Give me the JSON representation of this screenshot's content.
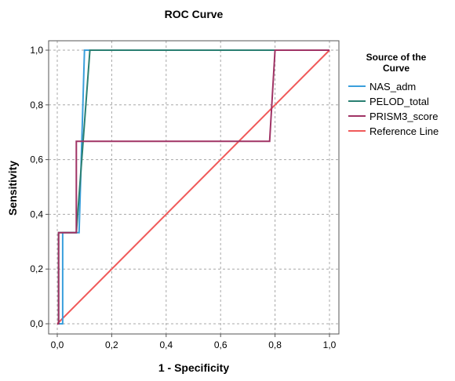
{
  "chart_data": {
    "type": "line",
    "title": "ROC Curve",
    "xlabel": "1 - Specificity",
    "ylabel": "Sensitivity",
    "xlim": [
      0,
      1
    ],
    "ylim": [
      0,
      1
    ],
    "x_ticks": [
      "0,0",
      "0,2",
      "0,4",
      "0,6",
      "0,8",
      "1,0"
    ],
    "y_ticks": [
      "0,0",
      "0,2",
      "0,4",
      "0,6",
      "0,8",
      "1,0"
    ],
    "grid": true,
    "legend_title": "Source of the Curve",
    "legend_position": "right",
    "series": [
      {
        "name": "NAS_adm",
        "color": "#3a9fdc",
        "points": [
          [
            0,
            0
          ],
          [
            0.02,
            0
          ],
          [
            0.02,
            0.333
          ],
          [
            0.08,
            0.333
          ],
          [
            0.1,
            1.0
          ],
          [
            1.0,
            1.0
          ]
        ]
      },
      {
        "name": "PELOD_total",
        "color": "#2a7f72",
        "points": [
          [
            0,
            0
          ],
          [
            0.005,
            0
          ],
          [
            0.005,
            0.333
          ],
          [
            0.07,
            0.333
          ],
          [
            0.12,
            1.0
          ],
          [
            1.0,
            1.0
          ]
        ]
      },
      {
        "name": "PRISM3_score",
        "color": "#a03365",
        "points": [
          [
            0,
            0
          ],
          [
            0.005,
            0
          ],
          [
            0.005,
            0.333
          ],
          [
            0.07,
            0.333
          ],
          [
            0.07,
            0.667
          ],
          [
            0.78,
            0.667
          ],
          [
            0.8,
            1.0
          ],
          [
            1.0,
            1.0
          ]
        ]
      },
      {
        "name": "Reference Line",
        "color": "#f05a5a",
        "points": [
          [
            0,
            0
          ],
          [
            1,
            1
          ]
        ]
      }
    ]
  }
}
